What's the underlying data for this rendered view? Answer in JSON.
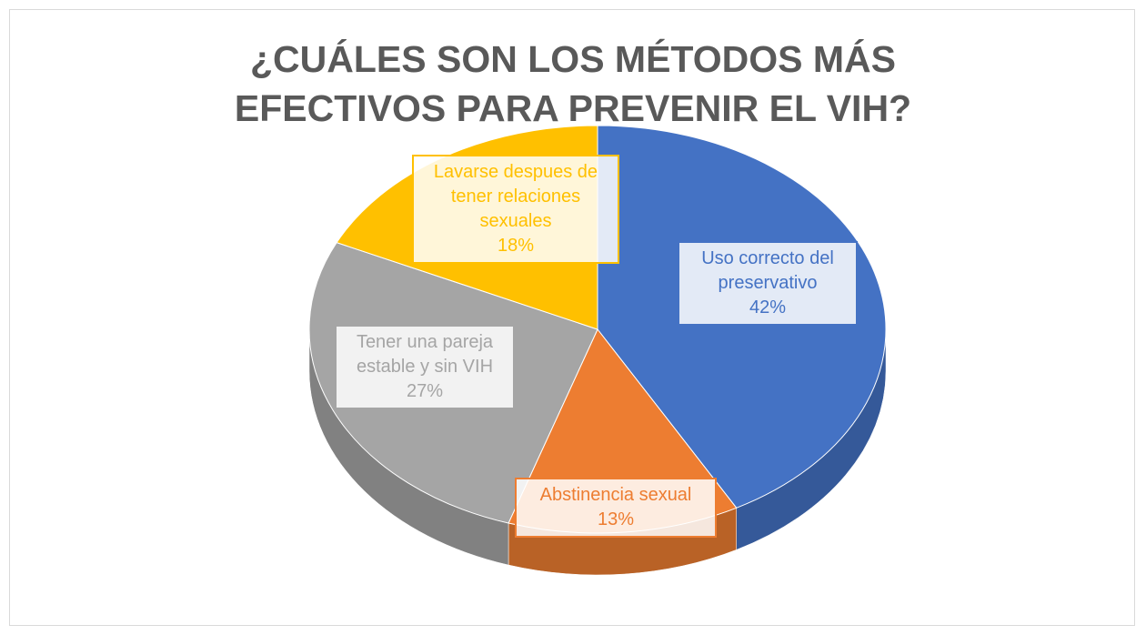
{
  "chart_data": {
    "type": "pie",
    "title": "¿CUÁLES SON LOS MÉTODOS MÁS EFECTIVOS PARA PREVENIR EL VIH?",
    "categories": [
      "Uso correcto del preservativo",
      "Abstinencia sexual",
      "Tener una pareja estable y sin VIH",
      "Lavarse despues de tener relaciones sexuales"
    ],
    "values": [
      42,
      13,
      27,
      18
    ],
    "value_labels": [
      "42%",
      "13%",
      "27%",
      "18%"
    ],
    "colors": [
      "#4472c4",
      "#ed7d31",
      "#a5a5a5",
      "#ffc000"
    ]
  }
}
